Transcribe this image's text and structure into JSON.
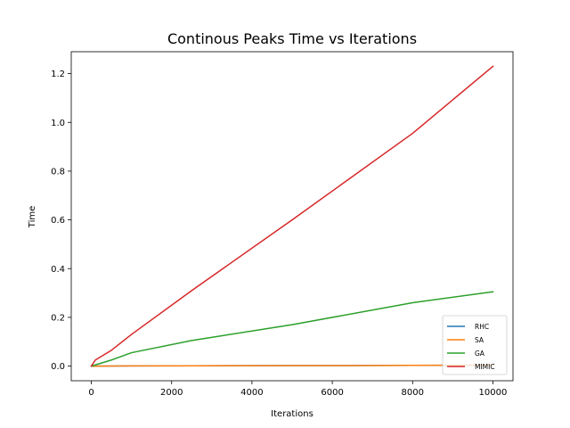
{
  "chart_data": {
    "type": "line",
    "title": "Continous Peaks Time vs Iterations",
    "xlabel": "Iterations",
    "ylabel": "Time",
    "xlim": [
      -500,
      10500
    ],
    "ylim": [
      -0.06,
      1.29
    ],
    "xticks": [
      0,
      2000,
      4000,
      6000,
      8000,
      10000
    ],
    "yticks": [
      0.0,
      0.2,
      0.4,
      0.6,
      0.8,
      1.0,
      1.2
    ],
    "xtick_labels": [
      "0",
      "2000",
      "4000",
      "6000",
      "8000",
      "10000"
    ],
    "ytick_labels": [
      "0.0",
      "0.2",
      "0.4",
      "0.6",
      "0.8",
      "1.0",
      "1.2"
    ],
    "grid": false,
    "legend_position": "lower-right",
    "series": [
      {
        "name": "RHC",
        "color": "#1f77b4",
        "x": [
          0,
          100,
          500,
          1000,
          2500,
          5000,
          8000,
          10000
        ],
        "y": [
          0.0,
          0.0,
          0.0005,
          0.001,
          0.0015,
          0.002,
          0.003,
          0.004
        ]
      },
      {
        "name": "SA",
        "color": "#ff7f0e",
        "x": [
          0,
          100,
          500,
          1000,
          2500,
          5000,
          8000,
          10000
        ],
        "y": [
          0.0,
          0.0,
          0.0005,
          0.001,
          0.0015,
          0.002,
          0.003,
          0.004
        ]
      },
      {
        "name": "GA",
        "color": "#2ca02c",
        "x": [
          0,
          100,
          500,
          1000,
          2500,
          5000,
          8000,
          10000
        ],
        "y": [
          0.0,
          0.005,
          0.025,
          0.055,
          0.105,
          0.17,
          0.26,
          0.305
        ]
      },
      {
        "name": "MIMIC",
        "color": "#d62728",
        "x": [
          0,
          100,
          500,
          1000,
          2500,
          5000,
          8000,
          10000
        ],
        "y": [
          0.0,
          0.025,
          0.065,
          0.13,
          0.31,
          0.6,
          0.955,
          1.23
        ]
      }
    ]
  }
}
